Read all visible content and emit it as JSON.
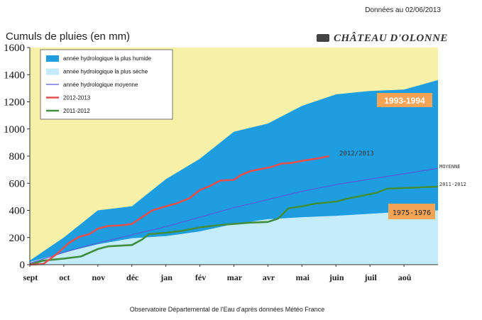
{
  "header": {
    "data_date": "Données au 02/06/2013"
  },
  "location": "CHÂTEAU D'OLONNE",
  "footer": "Observatoire Départemental de l'Eau d'après données Météo France",
  "colors": {
    "background": "#f6f0a8",
    "wettest": "#1e9de0",
    "driest": "#c4ecfa",
    "average": "#5a5ad6",
    "y2012_2013": "#e4504e",
    "y2011_2012": "#3f8f3f",
    "label_box": "#f3a457"
  },
  "chart_data": {
    "type": "area",
    "title": "Cumuls de pluies (en mm)",
    "xlabel": "",
    "ylabel": "",
    "ylim": [
      0,
      1600
    ],
    "yticks": [
      0,
      200,
      400,
      600,
      800,
      1000,
      1200,
      1400,
      1600
    ],
    "xlim": [
      0,
      12
    ],
    "months": [
      "sept",
      "oct",
      "nov",
      "déc",
      "jan",
      "fév",
      "mar",
      "avr",
      "mai",
      "juin",
      "juil",
      "aoû"
    ],
    "grid": false,
    "legend_position": "top-left",
    "legend": [
      "année hydrologique la plus humide",
      "année hydrologique la plus sèche",
      "année hydrologique moyenne",
      "2012-2013",
      "2011-2012"
    ],
    "series": [
      {
        "name": "année hydrologique la plus humide",
        "kind": "area",
        "points": [
          [
            0,
            30
          ],
          [
            1,
            200
          ],
          [
            2,
            400
          ],
          [
            3,
            430
          ],
          [
            4,
            630
          ],
          [
            5,
            780
          ],
          [
            6,
            980
          ],
          [
            7,
            1040
          ],
          [
            8,
            1170
          ],
          [
            9,
            1255
          ],
          [
            10,
            1280
          ],
          [
            11,
            1290
          ],
          [
            12,
            1360
          ]
        ]
      },
      {
        "name": "année hydrologique la plus sèche",
        "kind": "area",
        "points": [
          [
            0,
            20
          ],
          [
            1,
            90
          ],
          [
            2,
            150
          ],
          [
            3,
            195
          ],
          [
            4,
            210
          ],
          [
            5,
            245
          ],
          [
            6,
            300
          ],
          [
            7,
            335
          ],
          [
            8,
            350
          ],
          [
            9,
            360
          ],
          [
            10,
            375
          ],
          [
            11,
            390
          ],
          [
            12,
            400
          ]
        ]
      },
      {
        "name": "année hydrologique moyenne",
        "kind": "line",
        "points": [
          [
            0,
            10
          ],
          [
            1,
            90
          ],
          [
            2,
            160
          ],
          [
            3,
            220
          ],
          [
            4,
            280
          ],
          [
            5,
            350
          ],
          [
            6,
            420
          ],
          [
            7,
            480
          ],
          [
            8,
            540
          ],
          [
            9,
            590
          ],
          [
            10,
            630
          ],
          [
            11,
            670
          ],
          [
            12,
            710
          ]
        ]
      },
      {
        "name": "2012-2013",
        "kind": "line",
        "points": [
          [
            0,
            0
          ],
          [
            0.4,
            5
          ],
          [
            0.8,
            80
          ],
          [
            1.15,
            160
          ],
          [
            1.45,
            205
          ],
          [
            1.75,
            225
          ],
          [
            2,
            265
          ],
          [
            2.3,
            285
          ],
          [
            2.7,
            290
          ],
          [
            3,
            300
          ],
          [
            3.3,
            350
          ],
          [
            3.6,
            400
          ],
          [
            4,
            430
          ],
          [
            4.3,
            450
          ],
          [
            4.7,
            490
          ],
          [
            5,
            550
          ],
          [
            5.3,
            580
          ],
          [
            5.6,
            620
          ],
          [
            6,
            625
          ],
          [
            6.2,
            660
          ],
          [
            6.5,
            690
          ],
          [
            6.8,
            705
          ],
          [
            7.1,
            720
          ],
          [
            7.4,
            745
          ],
          [
            7.7,
            750
          ],
          [
            8,
            765
          ],
          [
            8.4,
            780
          ],
          [
            8.8,
            800
          ]
        ]
      },
      {
        "name": "2011-2012",
        "kind": "line",
        "points": [
          [
            0,
            0
          ],
          [
            0.4,
            30
          ],
          [
            1,
            45
          ],
          [
            1.5,
            60
          ],
          [
            2,
            115
          ],
          [
            2.3,
            135
          ],
          [
            3,
            145
          ],
          [
            3.3,
            185
          ],
          [
            3.5,
            225
          ],
          [
            4,
            235
          ],
          [
            4.5,
            250
          ],
          [
            5,
            275
          ],
          [
            5.5,
            290
          ],
          [
            6,
            300
          ],
          [
            6.5,
            310
          ],
          [
            7,
            315
          ],
          [
            7.3,
            340
          ],
          [
            7.6,
            415
          ],
          [
            8,
            430
          ],
          [
            8.4,
            450
          ],
          [
            9,
            465
          ],
          [
            9.4,
            490
          ],
          [
            9.8,
            510
          ],
          [
            10.2,
            530
          ],
          [
            10.5,
            560
          ],
          [
            11,
            565
          ],
          [
            12,
            575
          ]
        ]
      }
    ],
    "annotations": {
      "wettest_year": "1993-1994",
      "driest_year": "1975-1976",
      "end_label_2012_2013": "2012/2013",
      "end_label_average": "MOYENNE",
      "end_label_2011_2012": "2011-2012"
    }
  }
}
